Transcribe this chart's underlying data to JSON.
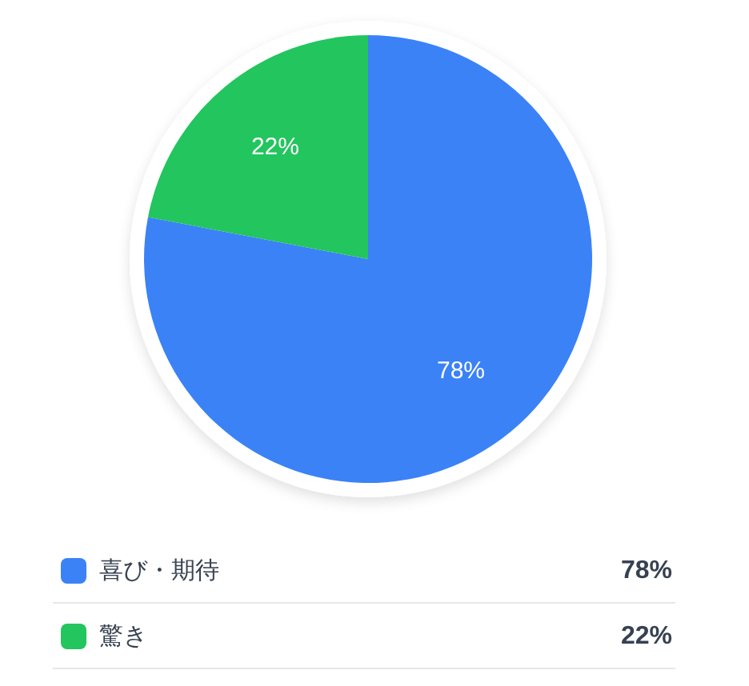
{
  "chart_data": {
    "type": "pie",
    "categories": [
      "喜び・期待",
      "驚き"
    ],
    "values": [
      78,
      22
    ],
    "colors": [
      "#3b82f6",
      "#22c55e"
    ],
    "value_labels": [
      "78%",
      "22%"
    ],
    "legend": "bottom"
  }
}
